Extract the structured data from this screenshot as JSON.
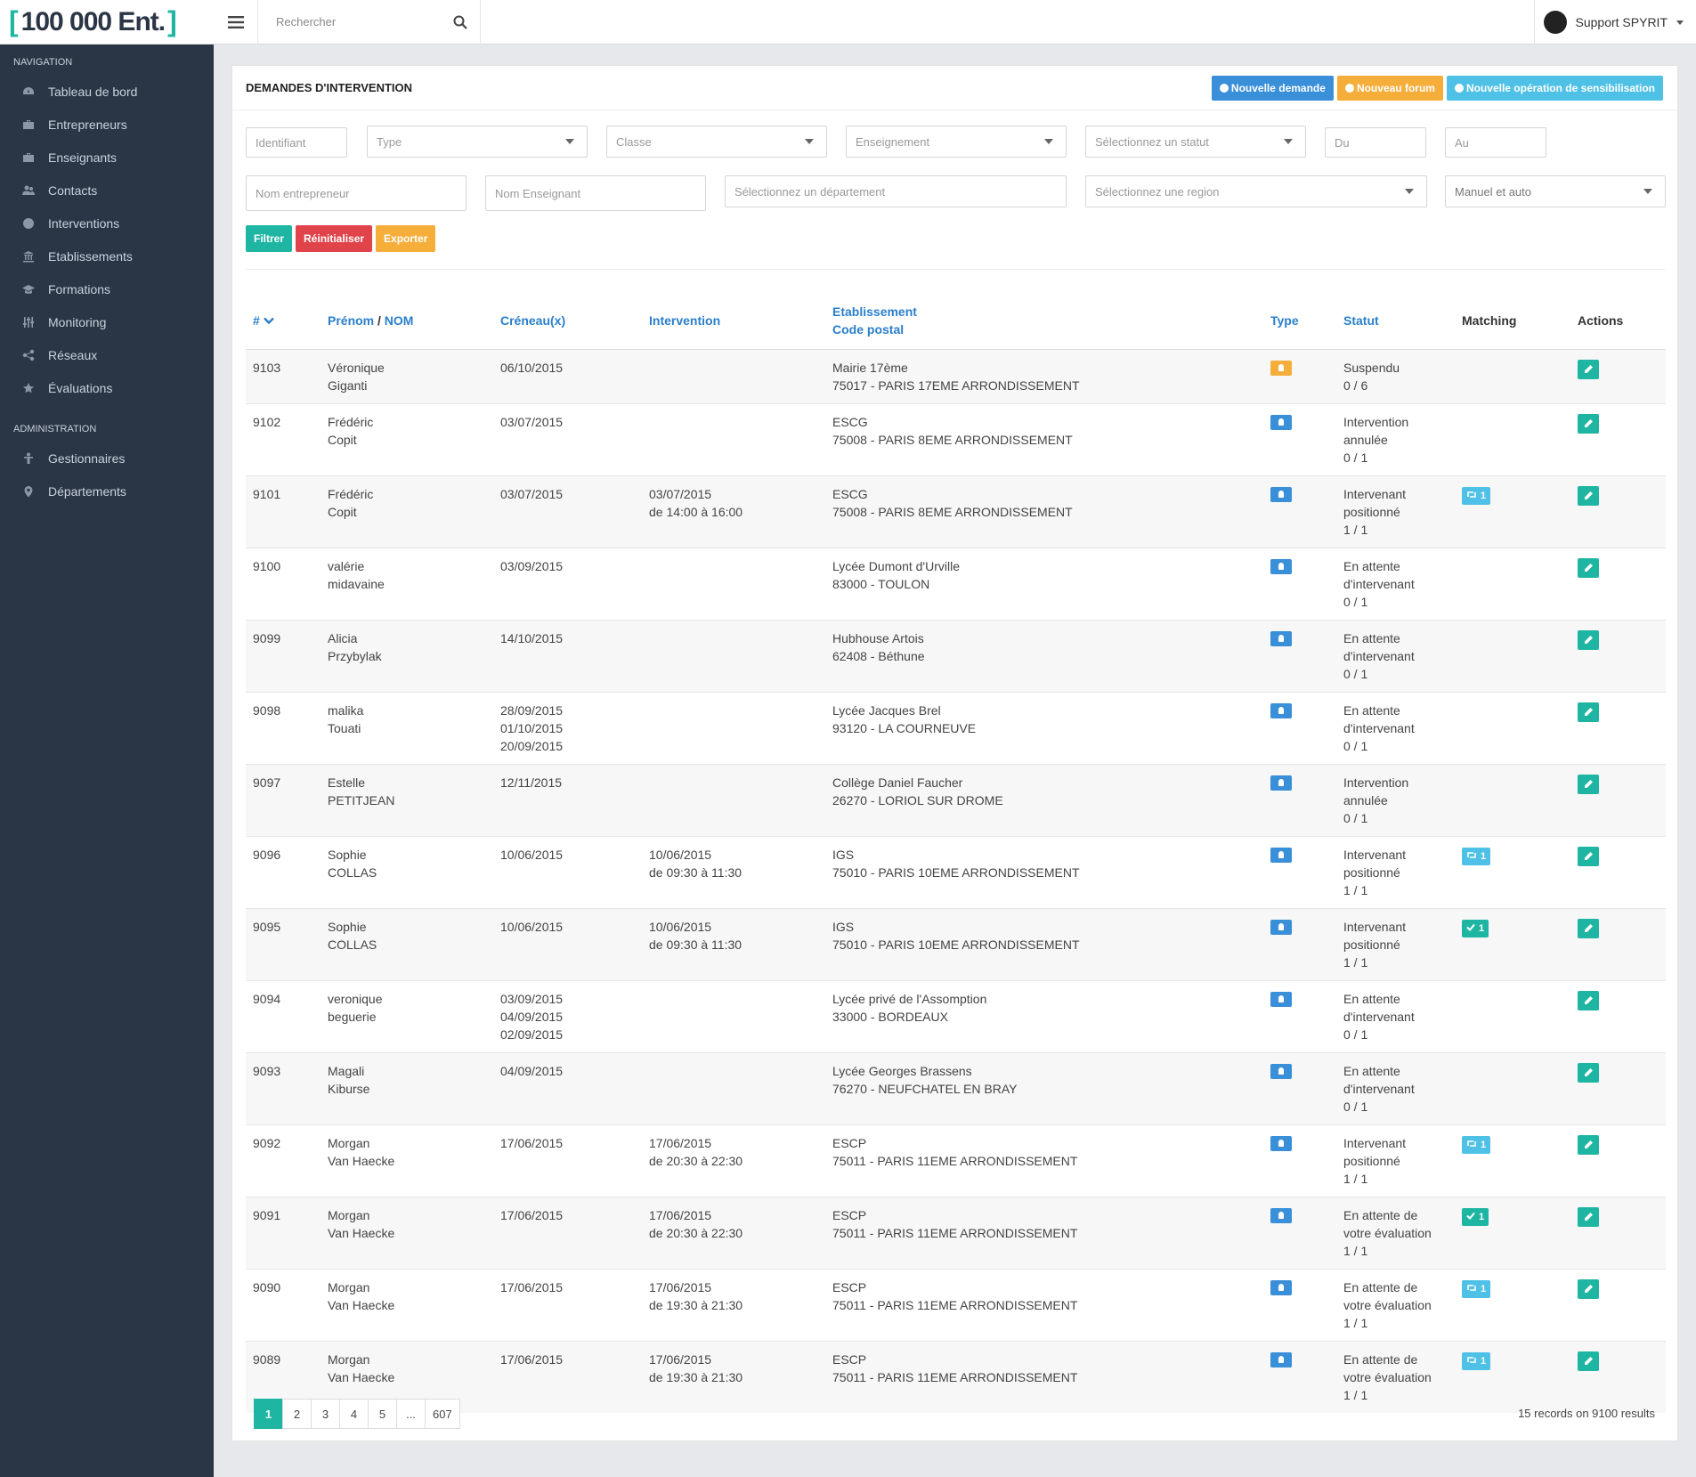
{
  "app": {
    "logo_left": "[",
    "logo_text": "100 000 Ent.",
    "logo_right": "]"
  },
  "topbar": {
    "search_placeholder": "Rechercher",
    "user_name": "Support SPYRIT"
  },
  "sidebar": {
    "nav_title": "NAVIGATION",
    "nav_items": [
      {
        "label": "Tableau de bord",
        "icon": "dashboard-icon"
      },
      {
        "label": "Entrepreneurs",
        "icon": "briefcase-icon"
      },
      {
        "label": "Enseignants",
        "icon": "briefcase-icon"
      },
      {
        "label": "Contacts",
        "icon": "users-icon"
      },
      {
        "label": "Interventions",
        "icon": "globe-icon"
      },
      {
        "label": "Etablissements",
        "icon": "institution-icon"
      },
      {
        "label": "Formations",
        "icon": "graduation-cap-icon"
      },
      {
        "label": "Monitoring",
        "icon": "sliders-icon"
      },
      {
        "label": "Réseaux",
        "icon": "share-icon"
      },
      {
        "label": "Évaluations",
        "icon": "star-half-icon"
      }
    ],
    "admin_title": "ADMINISTRATION",
    "admin_items": [
      {
        "label": "Gestionnaires",
        "icon": "person-icon"
      },
      {
        "label": "Départements",
        "icon": "map-marker-icon"
      }
    ]
  },
  "panel": {
    "title": "DEMANDES D'INTERVENTION",
    "btn_new_request": "Nouvelle demande",
    "btn_new_forum": "Nouveau forum",
    "btn_new_operation": "Nouvelle opération de sensibilisation"
  },
  "filters": {
    "identifiant": "Identifiant",
    "type": "Type",
    "classe": "Classe",
    "enseignement": "Enseignement",
    "statut": "Sélectionnez un statut",
    "du": "Du",
    "au": "Au",
    "nom_entrepreneur": "Nom entrepreneur",
    "nom_enseignant": "Nom Enseignant",
    "departement": "Sélectionnez un département",
    "region": "Sélectionnez une region",
    "mode": "Manuel et auto",
    "btn_filter": "Filtrer",
    "btn_reset": "Réinitialiser",
    "btn_export": "Exporter"
  },
  "table": {
    "headers": {
      "id": "#",
      "prenom": "Prénom",
      "slash": " / ",
      "nom": "NOM",
      "creneaux": "Créneau(x)",
      "intervention": "Intervention",
      "etab": "Etablissement",
      "cp": "Code postal",
      "type": "Type",
      "statut": "Statut",
      "matching": "Matching",
      "actions": "Actions"
    },
    "rows": [
      {
        "id": "9103",
        "first": "Véronique",
        "last": "Giganti",
        "slots": [
          "06/10/2015"
        ],
        "interv": [],
        "etab": "Mairie 17ème",
        "cp": "75017 - PARIS 17EME ARRONDISSEMENT",
        "type": "orange",
        "statut": [
          "Suspendu",
          "0 / 6"
        ],
        "match": null
      },
      {
        "id": "9102",
        "first": "Frédéric",
        "last": "Copit",
        "slots": [
          "03/07/2015"
        ],
        "interv": [],
        "etab": "ESCG",
        "cp": "75008 - PARIS 8EME ARRONDISSEMENT",
        "type": "blue",
        "statut": [
          "Intervention",
          "annulée",
          "0 / 1"
        ],
        "match": null
      },
      {
        "id": "9101",
        "first": "Frédéric",
        "last": "Copit",
        "slots": [
          "03/07/2015"
        ],
        "interv": [
          "03/07/2015",
          "de 14:00 à 16:00"
        ],
        "etab": "ESCG",
        "cp": "75008 - PARIS 8EME ARRONDISSEMENT",
        "type": "blue",
        "statut": [
          "Intervenant",
          "positionné",
          "1 / 1"
        ],
        "match": {
          "kind": "cyan",
          "text": "1"
        }
      },
      {
        "id": "9100",
        "first": "valérie",
        "last": "midavaine",
        "slots": [
          "03/09/2015"
        ],
        "interv": [],
        "etab": "Lycée Dumont d'Urville",
        "cp": "83000 - TOULON",
        "type": "blue",
        "statut": [
          "En attente",
          "d'intervenant",
          "0 / 1"
        ],
        "match": null
      },
      {
        "id": "9099",
        "first": "Alicia",
        "last": "Przybylak",
        "slots": [
          "14/10/2015"
        ],
        "interv": [],
        "etab": "Hubhouse Artois",
        "cp": "62408 - Béthune",
        "type": "blue",
        "statut": [
          "En attente",
          "d'intervenant",
          "0 / 1"
        ],
        "match": null
      },
      {
        "id": "9098",
        "first": "malika",
        "last": "Touati",
        "slots": [
          "28/09/2015",
          "01/10/2015",
          "20/09/2015"
        ],
        "interv": [],
        "etab": "Lycée Jacques Brel",
        "cp": "93120 - LA COURNEUVE",
        "type": "blue",
        "statut": [
          "En attente",
          "d'intervenant",
          "0 / 1"
        ],
        "match": null
      },
      {
        "id": "9097",
        "first": "Estelle",
        "last": "PETITJEAN",
        "slots": [
          "12/11/2015"
        ],
        "interv": [],
        "etab": "Collège Daniel Faucher",
        "cp": "26270 - LORIOL SUR DROME",
        "type": "blue",
        "statut": [
          "Intervention",
          "annulée",
          "0 / 1"
        ],
        "match": null
      },
      {
        "id": "9096",
        "first": "Sophie",
        "last": "COLLAS",
        "slots": [
          "10/06/2015"
        ],
        "interv": [
          "10/06/2015",
          "de 09:30 à 11:30"
        ],
        "etab": "IGS",
        "cp": "75010 - PARIS 10EME ARRONDISSEMENT",
        "type": "blue",
        "statut": [
          "Intervenant",
          "positionné",
          "1 / 1"
        ],
        "match": {
          "kind": "cyan",
          "text": "1"
        }
      },
      {
        "id": "9095",
        "first": "Sophie",
        "last": "COLLAS",
        "slots": [
          "10/06/2015"
        ],
        "interv": [
          "10/06/2015",
          "de 09:30 à 11:30"
        ],
        "etab": "IGS",
        "cp": "75010 - PARIS 10EME ARRONDISSEMENT",
        "type": "blue",
        "statut": [
          "Intervenant",
          "positionné",
          "1 / 1"
        ],
        "match": {
          "kind": "green",
          "text": "1"
        }
      },
      {
        "id": "9094",
        "first": "veronique",
        "last": "beguerie",
        "slots": [
          "03/09/2015",
          "04/09/2015",
          "02/09/2015"
        ],
        "interv": [],
        "etab": "Lycée privé de l'Assomption",
        "cp": "33000 - BORDEAUX",
        "type": "blue",
        "statut": [
          "En attente",
          "d'intervenant",
          "0 / 1"
        ],
        "match": null
      },
      {
        "id": "9093",
        "first": "Magali",
        "last": "Kiburse",
        "slots": [
          "04/09/2015"
        ],
        "interv": [],
        "etab": "Lycée Georges Brassens",
        "cp": "76270 - NEUFCHATEL EN BRAY",
        "type": "blue",
        "statut": [
          "En attente",
          "d'intervenant",
          "0 / 1"
        ],
        "match": null
      },
      {
        "id": "9092",
        "first": "Morgan",
        "last": "Van Haecke",
        "slots": [
          "17/06/2015"
        ],
        "interv": [
          "17/06/2015",
          "de 20:30 à 22:30"
        ],
        "etab": "ESCP",
        "cp": "75011 - PARIS 11EME ARRONDISSEMENT",
        "type": "blue",
        "statut": [
          "Intervenant",
          "positionné",
          "1 / 1"
        ],
        "match": {
          "kind": "cyan",
          "text": "1"
        }
      },
      {
        "id": "9091",
        "first": "Morgan",
        "last": "Van Haecke",
        "slots": [
          "17/06/2015"
        ],
        "interv": [
          "17/06/2015",
          "de 20:30 à 22:30"
        ],
        "etab": "ESCP",
        "cp": "75011 - PARIS 11EME ARRONDISSEMENT",
        "type": "blue",
        "statut": [
          "En attente de",
          "votre évaluation",
          "1 / 1"
        ],
        "match": {
          "kind": "green",
          "text": "1"
        }
      },
      {
        "id": "9090",
        "first": "Morgan",
        "last": "Van Haecke",
        "slots": [
          "17/06/2015"
        ],
        "interv": [
          "17/06/2015",
          "de 19:30 à 21:30"
        ],
        "etab": "ESCP",
        "cp": "75011 - PARIS 11EME ARRONDISSEMENT",
        "type": "blue",
        "statut": [
          "En attente de",
          "votre évaluation",
          "1 / 1"
        ],
        "match": {
          "kind": "cyan",
          "text": "1"
        }
      },
      {
        "id": "9089",
        "first": "Morgan",
        "last": "Van Haecke",
        "slots": [
          "17/06/2015"
        ],
        "interv": [
          "17/06/2015",
          "de 19:30 à 21:30"
        ],
        "etab": "ESCP",
        "cp": "75011 - PARIS 11EME ARRONDISSEMENT",
        "type": "blue",
        "statut": [
          "En attente de",
          "votre évaluation",
          "1 / 1"
        ],
        "match": {
          "kind": "cyan",
          "text": "1"
        }
      }
    ]
  },
  "pagination": {
    "pages": [
      "1",
      "2",
      "3",
      "4",
      "5",
      "...",
      "607"
    ],
    "active": "1",
    "records_text": "15 records on 9100 results"
  }
}
